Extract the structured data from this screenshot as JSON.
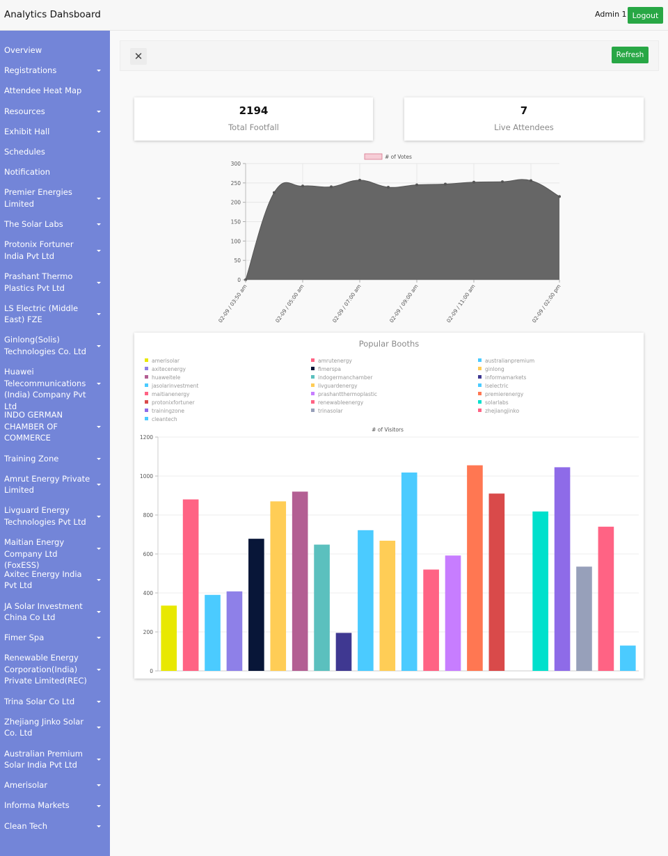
{
  "header": {
    "title": "Analytics Dahsboard",
    "user": "Admin 1",
    "logout_label": "Logout"
  },
  "sidebar": {
    "items": [
      {
        "label": "Overview",
        "dropdown": false
      },
      {
        "label": "Registrations",
        "dropdown": true
      },
      {
        "label": "Attendee Heat Map",
        "dropdown": false
      },
      {
        "label": "Resources",
        "dropdown": true
      },
      {
        "label": "Exhibit Hall",
        "dropdown": true
      },
      {
        "label": "Schedules",
        "dropdown": false
      },
      {
        "label": "Notification",
        "dropdown": false
      },
      {
        "label": "Premier Energies Limited",
        "dropdown": true
      },
      {
        "label": "The Solar Labs",
        "dropdown": true
      },
      {
        "label": "Protonix Fortuner India Pvt Ltd",
        "dropdown": true
      },
      {
        "label": "Prashant Thermo Plastics Pvt Ltd",
        "dropdown": true
      },
      {
        "label": "LS Electric (Middle East) FZE",
        "dropdown": true
      },
      {
        "label": "Ginlong(Solis) Technologies Co. Ltd",
        "dropdown": true
      },
      {
        "label": "Huawei Telecommunications (India) Company Pvt Ltd",
        "dropdown": true
      },
      {
        "label": "INDO GERMAN CHAMBER OF COMMERCE",
        "dropdown": true
      },
      {
        "label": "Training Zone",
        "dropdown": true
      },
      {
        "label": "Amrut Energy Private Limited",
        "dropdown": true
      },
      {
        "label": "Livguard Energy Technologies Pvt Ltd",
        "dropdown": true
      },
      {
        "label": "Maitian Energy Company Ltd (FoxESS)",
        "dropdown": true
      },
      {
        "label": "Axitec Energy India Pvt Ltd",
        "dropdown": true
      },
      {
        "label": "JA Solar Investment China Co Ltd",
        "dropdown": true
      },
      {
        "label": "Fimer Spa",
        "dropdown": true
      },
      {
        "label": "Renewable Energy Corporation(India) Private Limited(REC)",
        "dropdown": true
      },
      {
        "label": "Trina Solar Co Ltd",
        "dropdown": true
      },
      {
        "label": "Zhejiang Jinko Solar Co. Ltd",
        "dropdown": true
      },
      {
        "label": "Australian Premium Solar India Pvt Ltd",
        "dropdown": true
      },
      {
        "label": "Amerisolar",
        "dropdown": true
      },
      {
        "label": "Informa Markets",
        "dropdown": true
      },
      {
        "label": "Clean Tech",
        "dropdown": true
      }
    ]
  },
  "toolbar": {
    "close_icon": "close-icon",
    "refresh_label": "Refresh"
  },
  "stats": [
    {
      "value": "2194",
      "label": "Total Footfall"
    },
    {
      "value": "7",
      "label": "Live Attendees"
    }
  ],
  "colors": {
    "accent_green": "#28a745",
    "sidebar_bg": "#7385d8"
  },
  "chart_data": [
    {
      "type": "area",
      "title": "",
      "series": [
        {
          "name": "# of Votes",
          "color": "#666666",
          "x": [
            "02-09 / 03:50 am",
            "",
            "02-09 / 05:00 am",
            "",
            "02-09 / 07:00 am",
            "",
            "02-09 / 09:00 am",
            "",
            "02-09 / 11:00 am",
            "",
            "",
            "02-09 / 02:00 pm"
          ],
          "values": [
            0,
            225,
            242,
            240,
            257,
            239,
            245,
            247,
            252,
            253,
            256,
            215
          ]
        }
      ],
      "ylim": [
        0,
        300
      ],
      "yticks": [
        0,
        50,
        100,
        150,
        200,
        250,
        300
      ],
      "grid": true,
      "legend": "top"
    },
    {
      "type": "bar",
      "title": "Popular Booths",
      "subtitle": "# of Visitors",
      "legend": "top",
      "ylim": [
        0,
        1200
      ],
      "yticks": [
        0,
        200,
        400,
        600,
        800,
        1000,
        1200
      ],
      "series": [
        {
          "name": "amerisolar",
          "value": 335,
          "color": "#e8e800"
        },
        {
          "name": "amrutenergy",
          "value": 880,
          "color": "#ff6384"
        },
        {
          "name": "australianpremium",
          "value": 390,
          "color": "#4bcbff"
        },
        {
          "name": "axitecenergy",
          "value": 408,
          "color": "#8e80e8"
        },
        {
          "name": "fimerspa",
          "value": 678,
          "color": "#081638"
        },
        {
          "name": "ginlong",
          "value": 870,
          "color": "#ffcd56"
        },
        {
          "name": "huaweitele",
          "value": 920,
          "color": "#b35f93"
        },
        {
          "name": "indogermanchamber",
          "value": 648,
          "color": "#5bc0be"
        },
        {
          "name": "informamarkets",
          "value": 195,
          "color": "#3f3891"
        },
        {
          "name": "jasolarinvestment",
          "value": 722,
          "color": "#4bcbff"
        },
        {
          "name": "livguardenergy",
          "value": 668,
          "color": "#ffcd56"
        },
        {
          "name": "lselectric",
          "value": 1018,
          "color": "#4bcbff"
        },
        {
          "name": "maitianenergy",
          "value": 520,
          "color": "#ff6384"
        },
        {
          "name": "prashantthermoplastic",
          "value": 592,
          "color": "#c77dff"
        },
        {
          "name": "premierenergy",
          "value": 1055,
          "color": "#ff7752"
        },
        {
          "name": "protonixfortuner",
          "value": 910,
          "color": "#d94a4a"
        },
        {
          "name": "renewableenergy",
          "value": 0,
          "color": "#ff6384"
        },
        {
          "name": "solarlabs",
          "value": 818,
          "color": "#00e0cc"
        },
        {
          "name": "trainingzone",
          "value": 1045,
          "color": "#8e6be8"
        },
        {
          "name": "trinasolar",
          "value": 535,
          "color": "#97a0ba"
        },
        {
          "name": "zhejiangjinko",
          "value": 740,
          "color": "#ff6384"
        },
        {
          "name": "cleantech",
          "value": 130,
          "color": "#4bcbff"
        }
      ]
    }
  ]
}
